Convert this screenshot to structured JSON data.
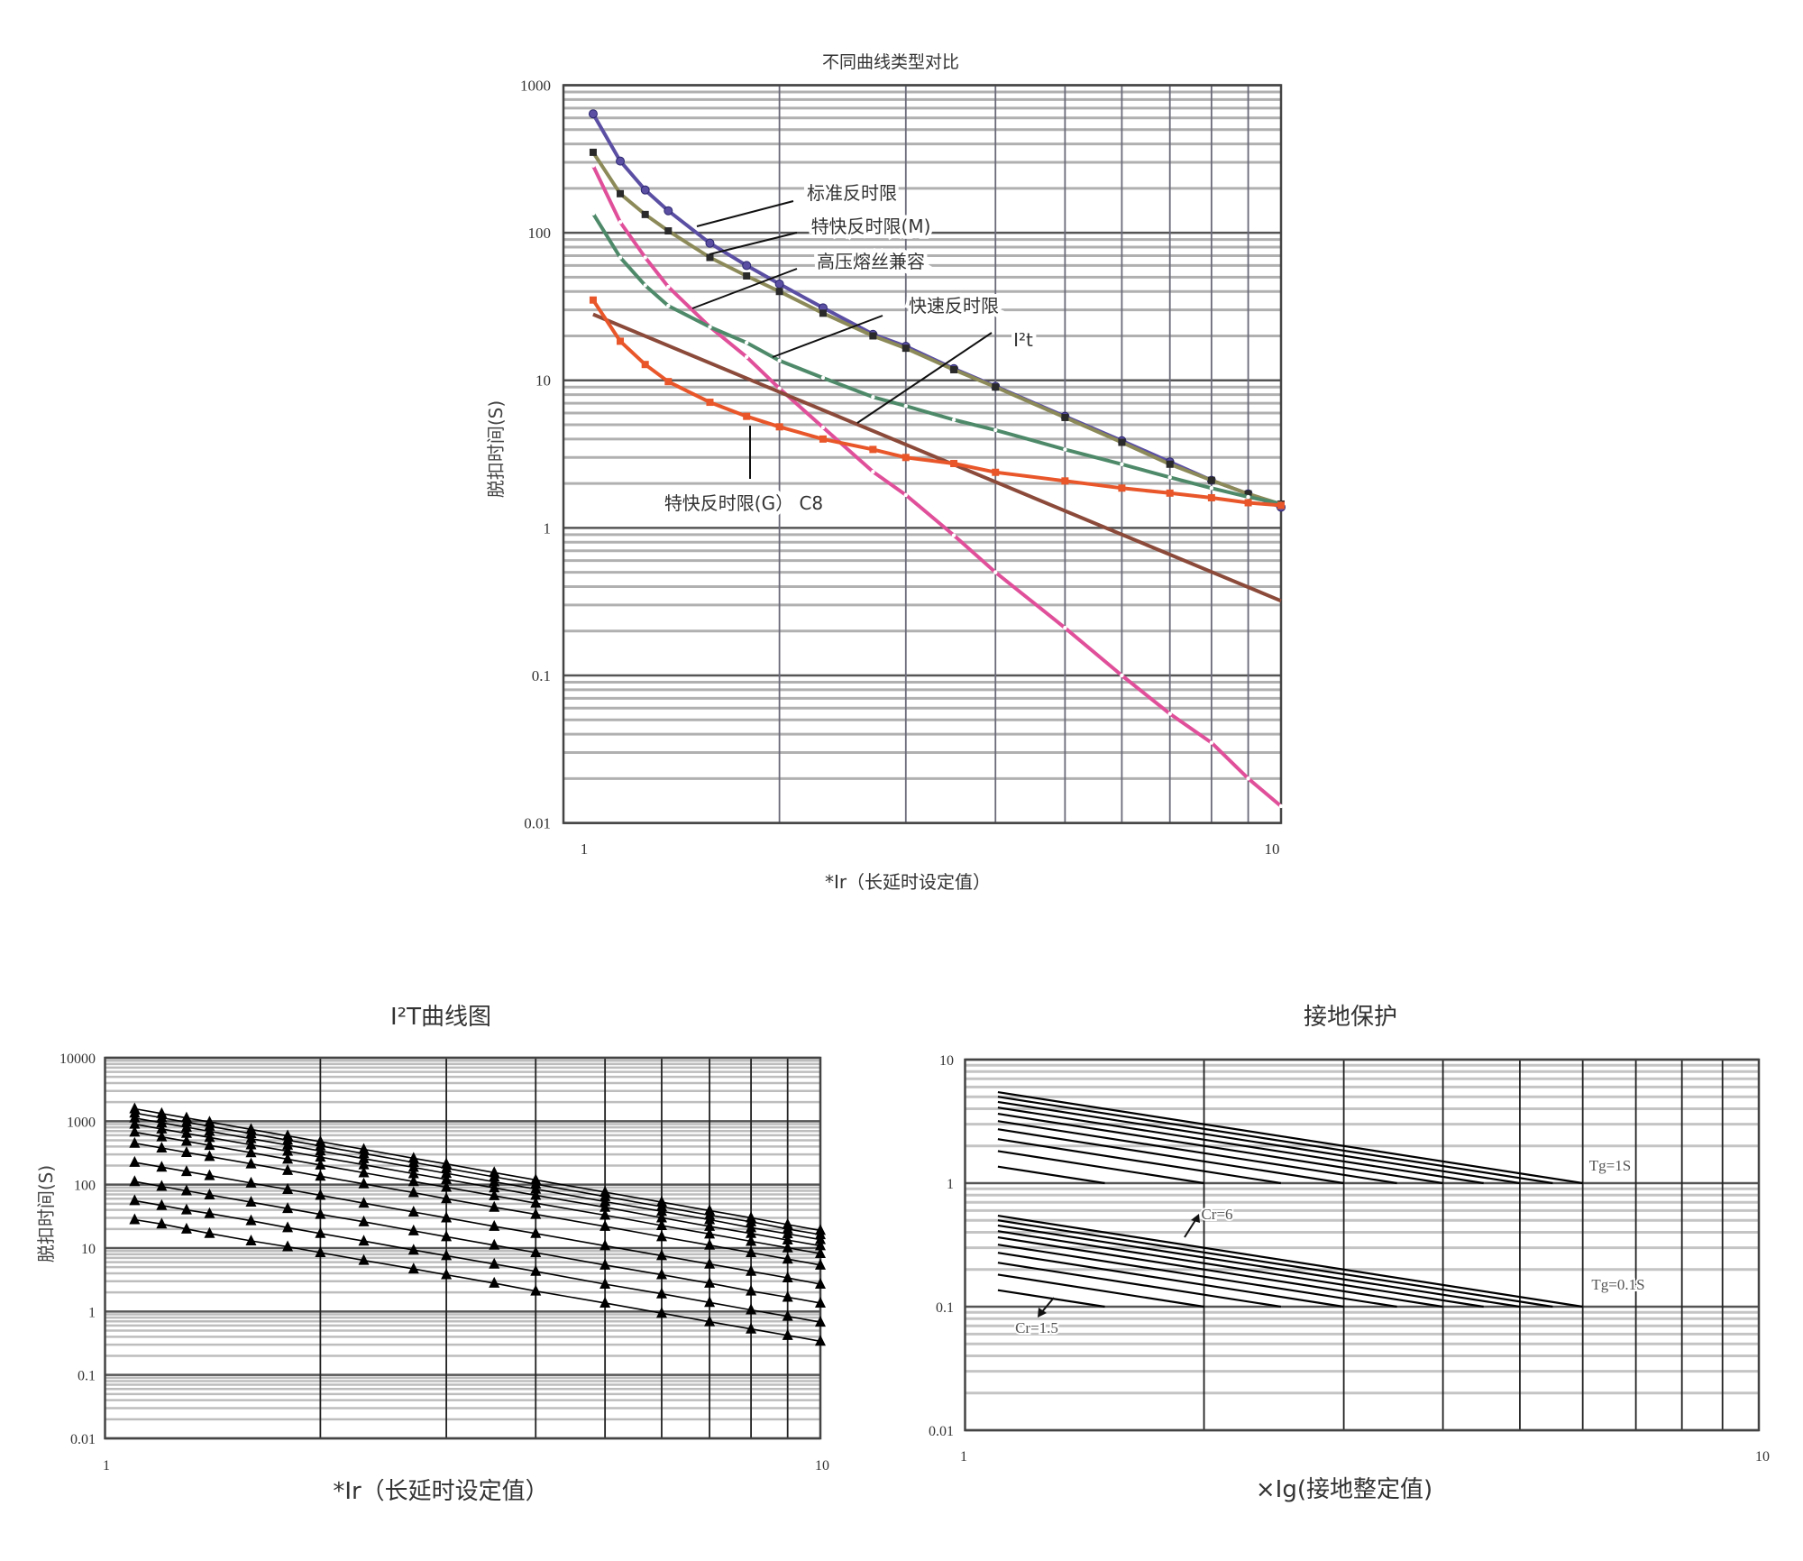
{
  "chart_data": [
    {
      "type": "line",
      "title": "不同曲线类型对比",
      "xlabel": "*Ir（长延时设定值）",
      "ylabel": "脱扣时间(S)",
      "x_scale": "log",
      "y_scale": "log",
      "xlim": [
        1,
        10
      ],
      "ylim": [
        0.01,
        1000
      ],
      "xticks": [
        "1",
        "10"
      ],
      "yticks": [
        "1000",
        "100",
        "10",
        "1",
        "0.1",
        "0.01"
      ],
      "grid": true,
      "series": [
        {
          "name": "标准反时限",
          "color": "#5a4fa3",
          "marker": "circle",
          "x": [
            1.1,
            1.2,
            1.3,
            1.4,
            1.6,
            1.8,
            2,
            2.3,
            2.7,
            3,
            3.5,
            4,
            5,
            6,
            7,
            8,
            9,
            10
          ],
          "y": [
            640,
            306,
            195,
            141,
            85,
            60,
            45,
            31,
            20.5,
            17,
            12,
            9.1,
            5.7,
            3.9,
            2.8,
            2.1,
            1.7,
            1.38
          ]
        },
        {
          "name": "特快反时限(M)",
          "color": "#8c8a58",
          "marker": "square",
          "x": [
            1.1,
            1.2,
            1.3,
            1.4,
            1.6,
            1.8,
            2,
            2.3,
            2.7,
            3,
            3.5,
            4,
            5,
            6,
            7,
            8,
            9,
            10
          ],
          "y": [
            351,
            184,
            133,
            103,
            68,
            51,
            40,
            28.5,
            20,
            16.5,
            11.8,
            9,
            5.6,
            3.8,
            2.7,
            2.1,
            1.7,
            1.45
          ]
        },
        {
          "name": "高压熔丝兼容",
          "color": "#e0509a",
          "marker": "dot",
          "x": [
            1.1,
            1.2,
            1.3,
            1.4,
            1.6,
            1.8,
            2,
            2.3,
            2.7,
            3,
            3.5,
            4,
            5,
            6,
            7,
            8,
            9,
            10
          ],
          "y": [
            285,
            118,
            68,
            43,
            23,
            14.4,
            8.8,
            4.8,
            2.4,
            1.67,
            0.89,
            0.5,
            0.21,
            0.1,
            0.055,
            0.035,
            0.02,
            0.013
          ]
        },
        {
          "name": "快速反时限",
          "color": "#4e8a6a",
          "marker": "dot",
          "x": [
            1.1,
            1.2,
            1.3,
            1.4,
            1.6,
            1.8,
            2,
            2.3,
            2.7,
            3,
            3.5,
            4,
            5,
            6,
            7,
            8,
            9,
            10
          ],
          "y": [
            135,
            68,
            44,
            32,
            23,
            18,
            13.6,
            10.4,
            7.7,
            6.7,
            5.4,
            4.6,
            3.4,
            2.7,
            2.2,
            1.86,
            1.62,
            1.46
          ]
        },
        {
          "name": "I²t",
          "color": "#8b4a3a",
          "marker": "none",
          "x": [
            1.1,
            10
          ],
          "y": [
            28,
            0.32
          ]
        },
        {
          "name": "特快反时限(G） C8",
          "color": "#e8562a",
          "marker": "square",
          "x": [
            1.1,
            1.2,
            1.3,
            1.4,
            1.6,
            1.8,
            2,
            2.3,
            2.7,
            3,
            3.5,
            4,
            5,
            6,
            7,
            8,
            9,
            10
          ],
          "y": [
            35,
            18.4,
            12.8,
            9.8,
            7.1,
            5.7,
            4.84,
            4.0,
            3.4,
            3.0,
            2.73,
            2.38,
            2.08,
            1.86,
            1.72,
            1.6,
            1.48,
            1.42
          ]
        }
      ]
    },
    {
      "type": "line",
      "title": "I²T曲线图",
      "xlabel": "*Ir（长延时设定值）",
      "ylabel": "脱扣时间(S)",
      "x_scale": "log",
      "y_scale": "log",
      "xlim": [
        1,
        10
      ],
      "ylim": [
        0.01,
        10000
      ],
      "xticks": [
        "1",
        "10"
      ],
      "yticks": [
        "10000",
        "1000",
        "100",
        "10",
        "1",
        "0.1",
        "0.01"
      ],
      "grid": true,
      "marker": "triangle",
      "color": "#000000",
      "x": [
        1.1,
        1.2,
        1.3,
        1.4,
        1.6,
        1.8,
        2,
        2.3,
        2.7,
        3,
        3.5,
        4,
        5,
        6,
        7,
        8,
        9,
        10
      ],
      "series": [
        {
          "y": [
            28,
            24,
            20,
            17,
            13,
            10.5,
            8.5,
            6.4,
            4.7,
            3.8,
            2.8,
            2.1,
            1.36,
            0.94,
            0.69,
            0.53,
            0.42,
            0.34
          ]
        },
        {
          "y": [
            56,
            47,
            40,
            35,
            27,
            21,
            17,
            12.9,
            9.3,
            7.6,
            5.6,
            4.3,
            2.7,
            1.9,
            1.39,
            1.06,
            0.84,
            0.68
          ]
        },
        {
          "y": [
            112,
            94,
            80,
            69,
            53,
            42,
            34,
            26,
            18.7,
            15.1,
            11.1,
            8.5,
            5.4,
            3.8,
            2.8,
            2.1,
            1.68,
            1.36
          ]
        },
        {
          "y": [
            225,
            189,
            161,
            139,
            106,
            84,
            68,
            51,
            37,
            30,
            22,
            17,
            10.9,
            7.6,
            5.6,
            4.3,
            3.4,
            2.7
          ]
        },
        {
          "y": [
            450,
            378,
            322,
            278,
            213,
            168,
            136,
            103,
            75,
            60,
            44,
            34,
            22,
            15.1,
            11.1,
            8.5,
            6.7,
            5.4
          ]
        },
        {
          "y": [
            674,
            567,
            483,
            416,
            319,
            252,
            204,
            154,
            112,
            91,
            67,
            51,
            33,
            22.7,
            16.7,
            12.8,
            10.1,
            8.2
          ]
        },
        {
          "y": [
            899,
            756,
            644,
            555,
            425,
            336,
            272,
            206,
            149,
            121,
            89,
            68,
            44,
            30,
            22,
            17,
            13.4,
            10.9
          ]
        },
        {
          "y": [
            1124,
            944,
            805,
            694,
            531,
            420,
            340,
            257,
            187,
            151,
            111,
            85,
            54,
            38,
            28,
            21,
            16.8,
            13.6
          ]
        },
        {
          "y": [
            1349,
            1133,
            966,
            833,
            638,
            504,
            408,
            309,
            224,
            181,
            133,
            102,
            65,
            45,
            33,
            26,
            20,
            16.3
          ]
        },
        {
          "y": [
            1574,
            1322,
            1127,
            971,
            744,
            588,
            476,
            360,
            261,
            212,
            155,
            119,
            76,
            53,
            39,
            30,
            23.5,
            19.0
          ]
        }
      ]
    },
    {
      "type": "line",
      "title": "接地保护",
      "xlabel": "×Ig(接地整定值)",
      "ylabel": "",
      "x_scale": "log",
      "y_scale": "log",
      "xlim": [
        1,
        10
      ],
      "ylim": [
        0.01,
        10
      ],
      "xticks": [
        "1",
        "10"
      ],
      "yticks": [
        "10",
        "1",
        "0.1",
        "0.01"
      ],
      "grid": true,
      "color": "#000000",
      "series": [
        {
          "x": [
            1.1,
            1.5
          ],
          "y": [
            1.36,
            1
          ]
        },
        {
          "x": [
            1.1,
            2
          ],
          "y": [
            1.82,
            1
          ]
        },
        {
          "x": [
            1.1,
            2.5
          ],
          "y": [
            2.27,
            1
          ]
        },
        {
          "x": [
            1.1,
            3
          ],
          "y": [
            2.73,
            1
          ]
        },
        {
          "x": [
            1.1,
            3.5
          ],
          "y": [
            3.18,
            1
          ]
        },
        {
          "x": [
            1.1,
            4
          ],
          "y": [
            3.64,
            1
          ]
        },
        {
          "x": [
            1.1,
            4.5
          ],
          "y": [
            4.09,
            1
          ]
        },
        {
          "x": [
            1.1,
            5
          ],
          "y": [
            4.55,
            1
          ]
        },
        {
          "x": [
            1.1,
            5.5
          ],
          "y": [
            5.0,
            1
          ]
        },
        {
          "x": [
            1.1,
            6
          ],
          "y": [
            5.45,
            1
          ]
        },
        {
          "x": [
            1.1,
            1.5
          ],
          "y": [
            0.136,
            0.1
          ]
        },
        {
          "x": [
            1.1,
            2
          ],
          "y": [
            0.182,
            0.1
          ]
        },
        {
          "x": [
            1.1,
            2.5
          ],
          "y": [
            0.227,
            0.1
          ]
        },
        {
          "x": [
            1.1,
            3
          ],
          "y": [
            0.273,
            0.1
          ]
        },
        {
          "x": [
            1.1,
            3.5
          ],
          "y": [
            0.318,
            0.1
          ]
        },
        {
          "x": [
            1.1,
            4
          ],
          "y": [
            0.364,
            0.1
          ]
        },
        {
          "x": [
            1.1,
            4.5
          ],
          "y": [
            0.409,
            0.1
          ]
        },
        {
          "x": [
            1.1,
            5
          ],
          "y": [
            0.455,
            0.1
          ]
        },
        {
          "x": [
            1.1,
            5.5
          ],
          "y": [
            0.5,
            0.1
          ]
        },
        {
          "x": [
            1.1,
            6
          ],
          "y": [
            0.545,
            0.1
          ]
        }
      ],
      "annotations": {
        "tg_high": "Tg=1S",
        "tg_low": "Tg=0.1S",
        "cr_max": "Cr=6",
        "cr_min": "Cr=1.5"
      }
    }
  ]
}
